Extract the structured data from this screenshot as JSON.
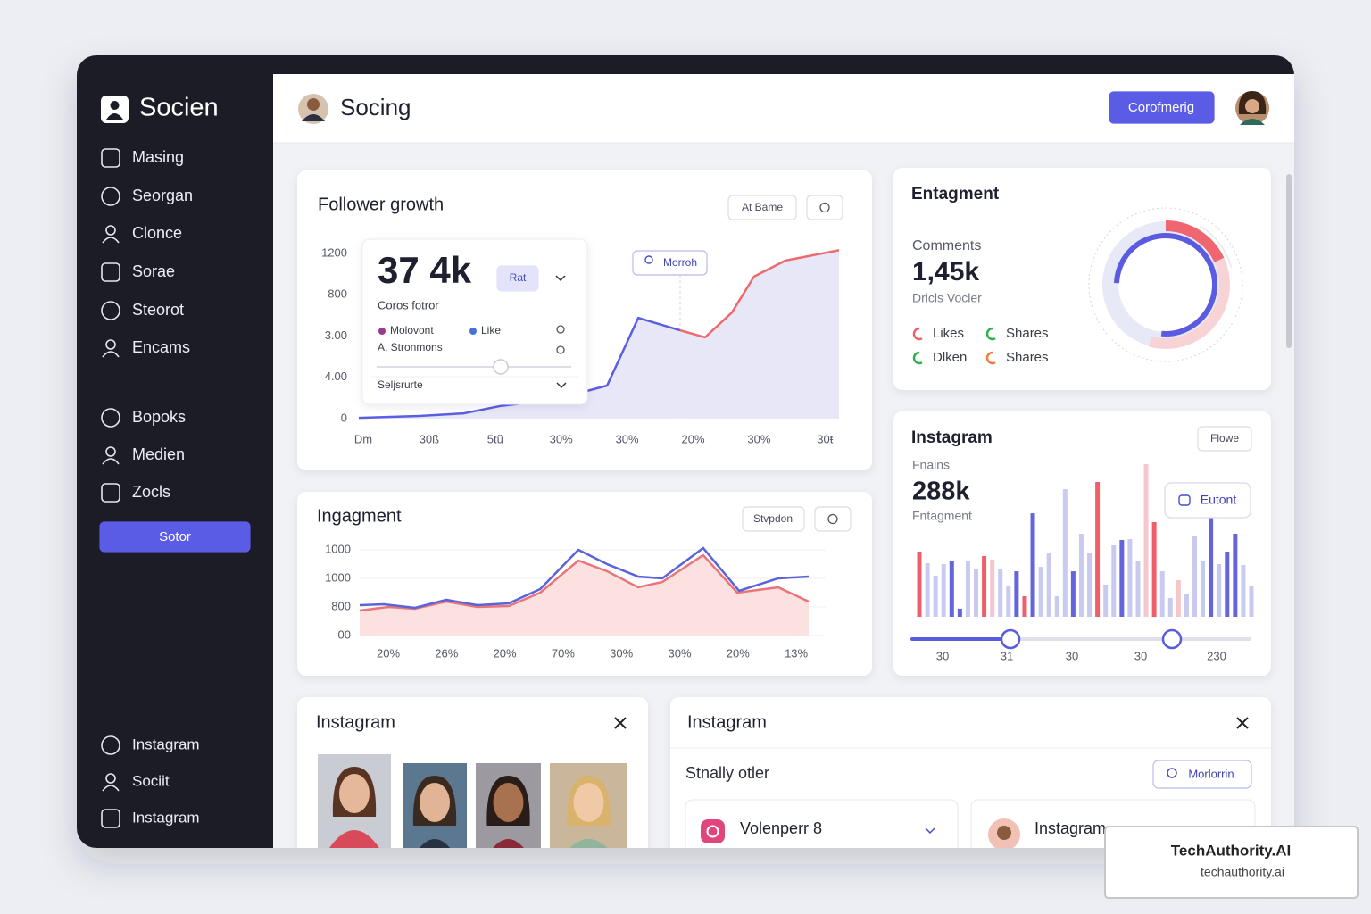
{
  "sidebar": {
    "brand": "Socien",
    "nav": [
      "Masing",
      "Seorgan",
      "Clonce",
      "Sorae",
      "Steorot",
      "Encams"
    ],
    "nav_secondary": [
      "Bopoks",
      "Medien",
      "Zocls"
    ],
    "button": "Sotor",
    "footer": [
      "Instagram",
      "Sociit",
      "Instagram"
    ]
  },
  "header": {
    "title": "Socing",
    "button": "Corofmerig"
  },
  "follower_growth": {
    "title": "Follower growth",
    "button": "At Bame",
    "tag": "Morroh",
    "y_labels": [
      "1200",
      "800",
      "3.00",
      "4.00",
      "0"
    ],
    "x_labels": [
      "Dm",
      "30ß",
      "5tŭ",
      "30%",
      "30%",
      "20%",
      "30%",
      "30ŧ"
    ],
    "popup": {
      "value": "37 4k",
      "pill": "Rat",
      "subtitle": "Coros fotror",
      "legend": [
        {
          "name": "Molovont",
          "color": "#9b3a8c"
        },
        {
          "name": "Like",
          "color": "#4a6fd8"
        }
      ],
      "note": "A, Stronmons",
      "select": "Seljsrurte"
    },
    "chart": {
      "type": "line",
      "xlim": [
        0,
        100
      ],
      "ylim": [
        0,
        110
      ],
      "series": [
        {
          "color": "#5b5ee0",
          "fill": "#e3e3f7",
          "x": [
            0,
            12.6,
            21.9,
            29.4,
            40.5,
            51.7,
            58.2,
            66.9
          ],
          "values": [
            0.5,
            1.6,
            3.2,
            7.6,
            11.4,
            20,
            61,
            53.5
          ]
        },
        {
          "color": "#ec6a6e",
          "fill": "#e3e3f7",
          "x": [
            66.9,
            72.1,
            77.7,
            82.3,
            88.8,
            100
          ],
          "values": [
            53.5,
            49.2,
            64.3,
            86,
            95.7,
            102
          ]
        }
      ]
    }
  },
  "ingagment": {
    "title": "Ingagment",
    "button": "Stvpdon",
    "y_labels": [
      "1000",
      "1000",
      "800",
      "00"
    ],
    "x_labels": [
      "20%",
      "26%",
      "20%",
      "70%",
      "30%",
      "30%",
      "20%",
      "13%"
    ],
    "chart": {
      "type": "line",
      "xlim": [
        0,
        100
      ],
      "ylim": [
        0,
        110
      ],
      "series": [
        {
          "color": "#e9757a",
          "fill": "#fbdcdc",
          "x": [
            0,
            6.4,
            12.3,
            19.3,
            26.2,
            33.2,
            40.2,
            48.7,
            55.1,
            62.0,
            67.4,
            76.5,
            84.1,
            93.2,
            100
          ],
          "values": [
            29.2,
            33.3,
            31.3,
            39.6,
            33.3,
            34.4,
            50,
            87.5,
            75,
            56.3,
            62.5,
            93.8,
            50,
            56.3,
            39.6
          ]
        },
        {
          "color": "#5b63d8",
          "x": [
            0,
            5.4,
            12.3,
            19.3,
            26.2,
            33.2,
            40.2,
            48.7,
            55.1,
            62.0,
            67.4,
            76.5,
            84.5,
            93.2,
            100
          ],
          "values": [
            35.4,
            36.5,
            32.3,
            41.7,
            35.4,
            37.5,
            54.2,
            100,
            83.3,
            68.8,
            66.7,
            102.1,
            52.1,
            66.7,
            68.8
          ]
        }
      ]
    }
  },
  "entagment": {
    "title": "Entagment",
    "metric_label": "Comments",
    "metric_value": "1,45k",
    "metric_note": "Dricls Vocler",
    "legend": [
      {
        "name": "Likes",
        "color": "#ef5d68"
      },
      {
        "name": "Shares",
        "color": "#2fae4e"
      },
      {
        "name": "Dlken",
        "color": "#2fae4e"
      },
      {
        "name": "Shares",
        "color": "#f07a3a"
      }
    ]
  },
  "instagram_stats": {
    "title": "Instagram",
    "button": "Flowe",
    "metric_label": "Fnains",
    "metric_value": "288k",
    "metric_note": "Fntagment",
    "tooltip": "Eutont",
    "chart": {
      "type": "bar",
      "ylim": [
        0,
        100
      ],
      "values": [
        42.7,
        35.1,
        26.9,
        34.5,
        36.8,
        5.3,
        36.8,
        31,
        39.8,
        37.4,
        31.6,
        20.5,
        29.8,
        13.5,
        67.8,
        32.7,
        41.5,
        13.5,
        83.6,
        29.8,
        54.4,
        41.5,
        88.3,
        21.1,
        46.8,
        50.3,
        50.9,
        36.8,
        100,
        62,
        29.8,
        12.3,
        24,
        15.2,
        53.2,
        36.8,
        64.9,
        34.5,
        42.7,
        54.4,
        33.9,
        19.9
      ],
      "colors": [
        "#ef5f6a",
        "#c9caf0",
        "#c9caf0",
        "#c9caf0",
        "#6464dc",
        "#6464dc",
        "#c9caf0",
        "#c9caf0",
        "#ef5f6a",
        "#f5c6cb",
        "#c9caf0",
        "#c9caf0",
        "#6464dc",
        "#ef5f6a",
        "#6464dc",
        "#c9caf0",
        "#c9caf0",
        "#c9caf0",
        "#c9caf0",
        "#6464dc",
        "#c9caf0",
        "#c9caf0",
        "#ef5f6a",
        "#c9caf0",
        "#c9caf0",
        "#6464dc",
        "#c9caf0",
        "#c9caf0",
        "#f5c6cb",
        "#ef5f6a",
        "#c9caf0",
        "#c9caf0",
        "#f5c6cb",
        "#c9caf0",
        "#c9caf0",
        "#c9caf0",
        "#6464dc",
        "#c9caf0",
        "#6464dc",
        "#6464dc",
        "#c9caf0",
        "#c9caf0"
      ]
    },
    "slider_labels": [
      "30",
      "31",
      "30",
      "30",
      "230"
    ]
  },
  "instagram_photos": {
    "title": "Instagram"
  },
  "instagram_list": {
    "title": "Instagram",
    "subtitle": "Stnally otler",
    "button": "Morlorrin",
    "items": [
      "Volenperr 8",
      "Instagram"
    ]
  },
  "watermark": {
    "name": "TechAuthority.AI",
    "url": "techauthority.ai"
  }
}
